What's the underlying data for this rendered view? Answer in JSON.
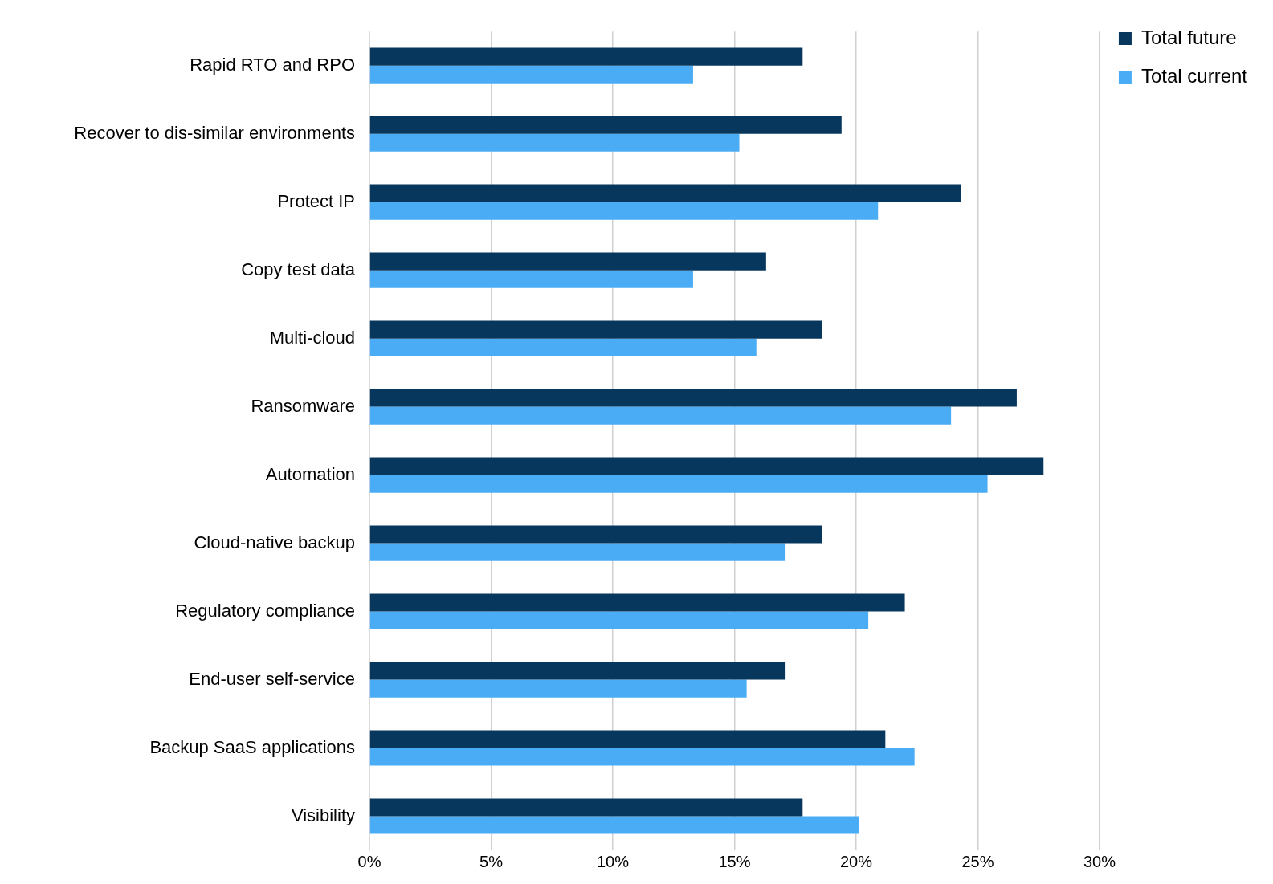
{
  "chart_data": {
    "type": "bar",
    "orientation": "horizontal",
    "categories": [
      "Rapid RTO and RPO",
      "Recover to dis-similar environments",
      "Protect IP",
      "Copy test data",
      "Multi-cloud",
      "Ransomware",
      "Automation",
      "Cloud-native backup",
      "Regulatory compliance",
      "End-user self-service",
      "Backup SaaS applications",
      "Visibility"
    ],
    "series": [
      {
        "name": "Total future",
        "color": "#08375e",
        "values": [
          17.8,
          19.4,
          24.3,
          16.3,
          18.6,
          26.6,
          27.7,
          18.6,
          22.0,
          17.1,
          21.2,
          17.8
        ]
      },
      {
        "name": "Total current",
        "color": "#4aacf5",
        "values": [
          13.3,
          15.2,
          20.9,
          13.3,
          15.9,
          23.9,
          25.4,
          17.1,
          20.5,
          15.5,
          22.4,
          20.1
        ]
      }
    ],
    "xlim": [
      0,
      30
    ],
    "xticks": [
      {
        "value": 0,
        "label": "0%"
      },
      {
        "value": 5,
        "label": "5%"
      },
      {
        "value": 10,
        "label": "10%"
      },
      {
        "value": 15,
        "label": "15%"
      },
      {
        "value": 20,
        "label": "20%"
      },
      {
        "value": 25,
        "label": "25%"
      },
      {
        "value": 30,
        "label": "30%"
      }
    ],
    "grid": "x",
    "legend": "top right"
  }
}
